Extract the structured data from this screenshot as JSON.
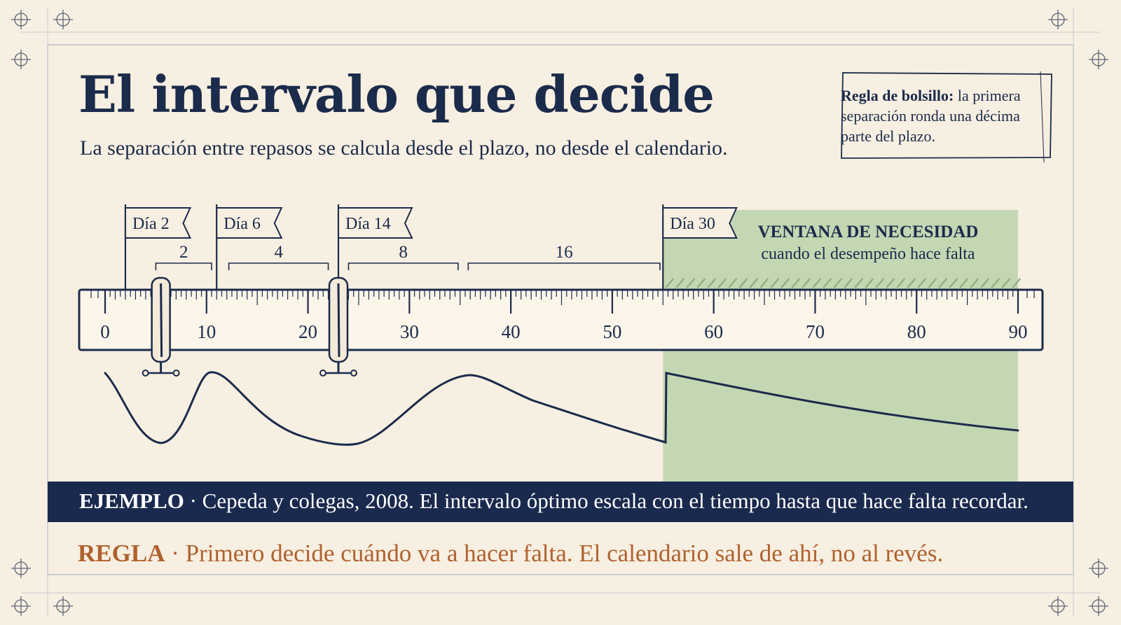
{
  "header": {
    "title": "El intervalo que decide",
    "subtitle": "La separación entre repasos se calcula desde el plazo, no desde el calendario."
  },
  "tip": {
    "label": "Regla de bolsillo:",
    "text": " la primera separación ronda una décima parte del plazo."
  },
  "window": {
    "title": "VENTANA DE NECESIDAD",
    "subtitle": "cuando el desempeño hace falta",
    "start_day": 55,
    "end_day": 90
  },
  "ruler": {
    "min": 0,
    "max": 90,
    "major_ticks": [
      "0",
      "10",
      "20",
      "30",
      "40",
      "50",
      "60",
      "70",
      "80",
      "90"
    ],
    "clamp_days": [
      5.5,
      23
    ]
  },
  "flags": [
    {
      "label": "Día 2",
      "day": 2
    },
    {
      "label": "Día 6",
      "day": 11
    },
    {
      "label": "Día 14",
      "day": 23
    },
    {
      "label": "Día 30",
      "day": 55
    }
  ],
  "gaps": [
    {
      "label": "2",
      "from_day": 5,
      "to_day": 10.5
    },
    {
      "label": "4",
      "from_day": 12.2,
      "to_day": 22
    },
    {
      "label": "8",
      "from_day": 24,
      "to_day": 34.8
    },
    {
      "label": "16",
      "from_day": 35.8,
      "to_day": 54.7
    }
  ],
  "banner": {
    "label": "EJEMPLO",
    "text": " · Cepeda y colegas, 2008. El intervalo óptimo escala con el tiempo hasta que hace falta recordar."
  },
  "rule": {
    "label": "REGLA",
    "text": " · Primero decide cuándo va a hacer falta. El calendario sale de ahí, no al revés."
  },
  "colors": {
    "navy": "#1b2b4b",
    "window_green": "#c3d7b3",
    "hatch_green": "#8fb07e",
    "accent_orange": "#b0612e",
    "paper": "#f7efe1"
  }
}
